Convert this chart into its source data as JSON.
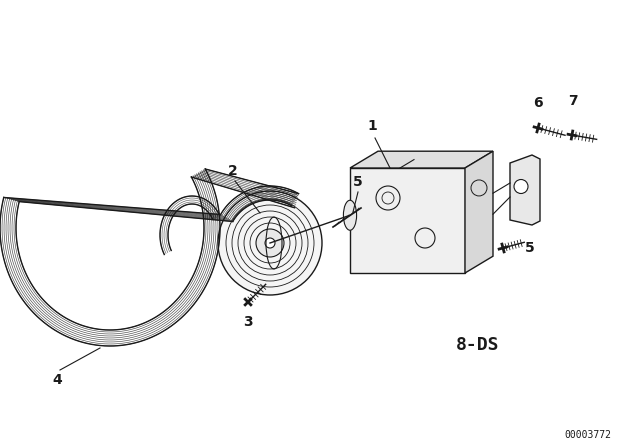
{
  "bg_color": "#ffffff",
  "line_color": "#1a1a1a",
  "annotation_text": "8-DS",
  "diagram_code": "00003772",
  "label_fontsize": 10,
  "anno_fontsize": 13,
  "code_fontsize": 7
}
